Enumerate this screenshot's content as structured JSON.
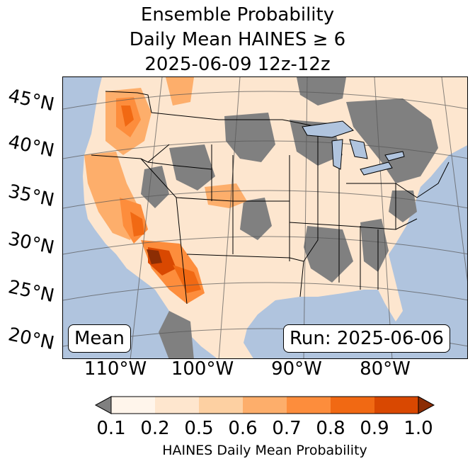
{
  "title": {
    "line1": "Ensemble Probability",
    "line2": "Daily Mean HAINES ≥ 6",
    "line3": "2025-06-09 12z-12z"
  },
  "map": {
    "latitude_labels": [
      "45°N",
      "40°N",
      "35°N",
      "30°N",
      "25°N",
      "20°N"
    ],
    "longitude_labels": [
      "110°W",
      "100°W",
      "90°W",
      "80°W"
    ],
    "stat_label": "Mean",
    "run_label": "Run: 2025-06-06"
  },
  "colorbar": {
    "tick_labels": [
      "0.1",
      "0.2",
      "0.5",
      "0.6",
      "0.7",
      "0.8",
      "0.9",
      "1.0"
    ],
    "label": "HAINES Daily Mean Probability",
    "colors": {
      "under": "#808080",
      "bins": [
        "#fff5eb",
        "#fee6ce",
        "#fdd0a2",
        "#fdae6b",
        "#fd8d3c",
        "#f16913",
        "#d94801"
      ],
      "over": "#8c2d04"
    }
  },
  "colors": {
    "ocean": "#b0c4de",
    "no_data": "#808080"
  }
}
